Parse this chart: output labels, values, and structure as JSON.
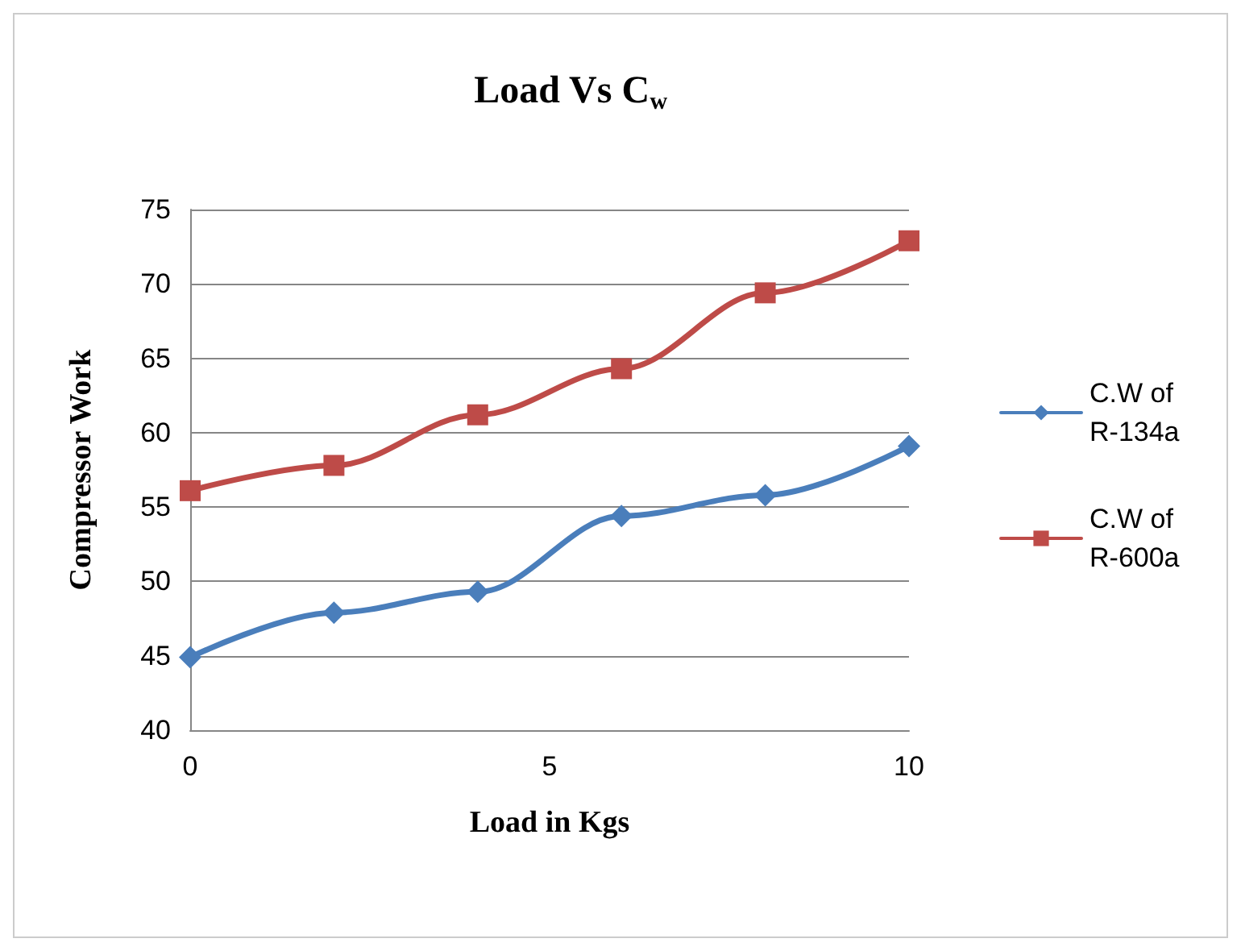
{
  "chart_data": {
    "type": "line",
    "title": "Load Vs C$_{w}$",
    "xlabel": "Load in Kgs",
    "ylabel": "Compressor Work",
    "x": [
      0,
      2,
      4,
      6,
      8,
      10
    ],
    "xlim": [
      0,
      10
    ],
    "xticks": [
      0,
      5,
      10
    ],
    "ylim": [
      40,
      75
    ],
    "yticks": [
      40,
      45,
      50,
      55,
      60,
      65,
      70,
      75
    ],
    "grid": "y",
    "legend": "right",
    "line_style": "solid",
    "series": [
      {
        "name": "C.W of R-134a",
        "color": "#4a7ebb",
        "marker": "diamond",
        "values": [
          44.9,
          47.9,
          49.3,
          54.4,
          55.8,
          59.1
        ]
      },
      {
        "name": "C.W of R-600a",
        "color": "#be4b48",
        "marker": "square",
        "values": [
          56.1,
          57.8,
          61.2,
          64.3,
          69.4,
          72.9
        ]
      }
    ]
  }
}
